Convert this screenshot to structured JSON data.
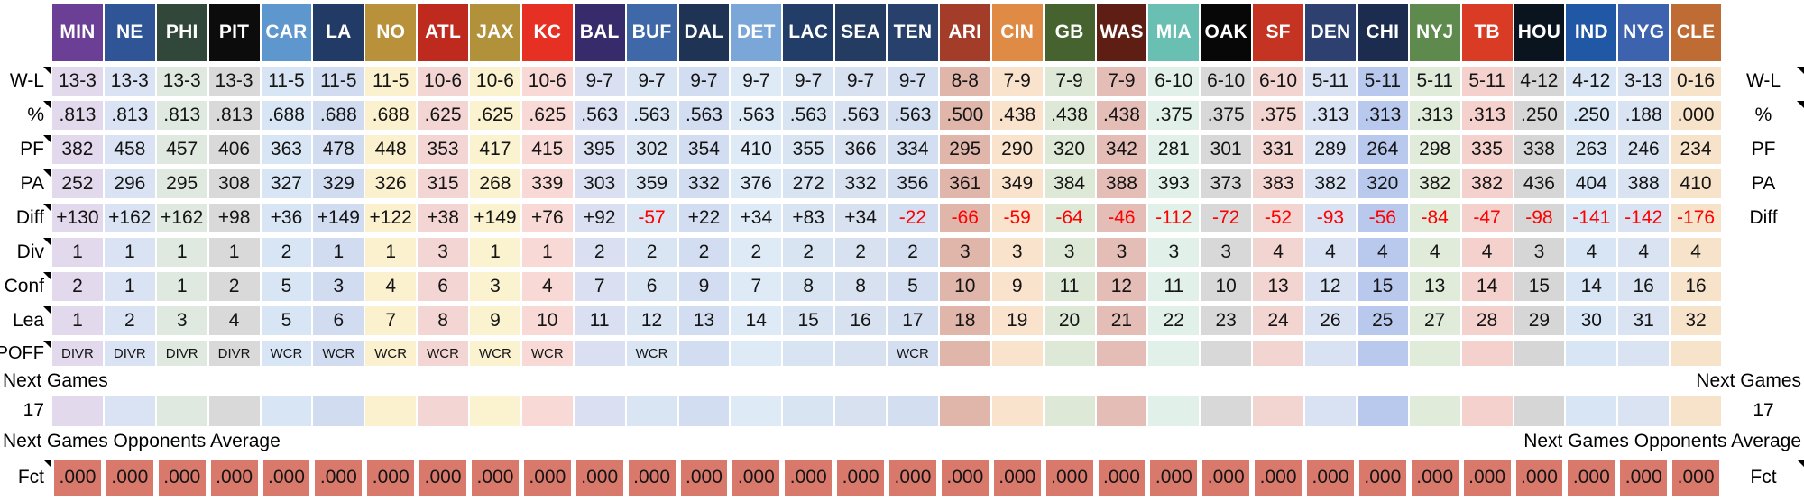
{
  "teams": [
    {
      "abbr": "MIN",
      "color": "#6C3F97",
      "tint": "#E2D9EC"
    },
    {
      "abbr": "NE",
      "color": "#2F5597",
      "tint": "#DAE3F3"
    },
    {
      "abbr": "PHI",
      "color": "#31473A",
      "tint": "#DFE9DF"
    },
    {
      "abbr": "PIT",
      "color": "#0C0C0C",
      "tint": "#D9D9D9"
    },
    {
      "abbr": "CAR",
      "color": "#5E97CE",
      "tint": "#D8E5F4"
    },
    {
      "abbr": "LA",
      "color": "#223A66",
      "tint": "#D2DCF1"
    },
    {
      "abbr": "NO",
      "color": "#BA913B",
      "tint": "#FBF1CE"
    },
    {
      "abbr": "ATL",
      "color": "#BF2A1E",
      "tint": "#F3D6D3"
    },
    {
      "abbr": "JAX",
      "color": "#B2913B",
      "tint": "#FBF2D0"
    },
    {
      "abbr": "KC",
      "color": "#E63023",
      "tint": "#F8D9D6"
    },
    {
      "abbr": "BAL",
      "color": "#372B6B",
      "tint": "#DADFF1"
    },
    {
      "abbr": "BUF",
      "color": "#3E68A8",
      "tint": "#DAE5F4"
    },
    {
      "abbr": "DAL",
      "color": "#1F3455",
      "tint": "#D3DDF1"
    },
    {
      "abbr": "DET",
      "color": "#7AA7D7",
      "tint": "#DEEAF6"
    },
    {
      "abbr": "LAC",
      "color": "#223E68",
      "tint": "#D9E4F3"
    },
    {
      "abbr": "SEA",
      "color": "#253C62",
      "tint": "#D8E1F0"
    },
    {
      "abbr": "TEN",
      "color": "#28406C",
      "tint": "#D4DEF1"
    },
    {
      "abbr": "ARI",
      "color": "#A33C28",
      "tint": "#E0B6AB"
    },
    {
      "abbr": "CIN",
      "color": "#E08B45",
      "tint": "#F9E3CC"
    },
    {
      "abbr": "GB",
      "color": "#45622F",
      "tint": "#DEE8D7"
    },
    {
      "abbr": "WAS",
      "color": "#5E1E13",
      "tint": "#E4BDB6"
    },
    {
      "abbr": "MIA",
      "color": "#69BFB1",
      "tint": "#E1F0E8"
    },
    {
      "abbr": "OAK",
      "color": "#070707",
      "tint": "#D8D8D8"
    },
    {
      "abbr": "SF",
      "color": "#C53423",
      "tint": "#F2D4D0"
    },
    {
      "abbr": "DEN",
      "color": "#2D406F",
      "tint": "#D8E2F2"
    },
    {
      "abbr": "CHI",
      "color": "#1B2C4F",
      "tint": "#B8C9ED"
    },
    {
      "abbr": "NYJ",
      "color": "#5E8A4D",
      "tint": "#E0EBDA"
    },
    {
      "abbr": "TB",
      "color": "#DA3B25",
      "tint": "#F4D1CD"
    },
    {
      "abbr": "HOU",
      "color": "#0A141F",
      "tint": "#D6D6D6"
    },
    {
      "abbr": "IND",
      "color": "#2058A5",
      "tint": "#D7E5F4"
    },
    {
      "abbr": "NYG",
      "color": "#3E63AE",
      "tint": "#DAE3F2"
    },
    {
      "abbr": "CLE",
      "color": "#BE6C34",
      "tint": "#F7E2CA"
    }
  ],
  "colors": {
    "negative_text": "#FF0000",
    "fct_cell": "#D9796C",
    "marker": "#000000"
  },
  "rows": [
    {
      "id": "wl",
      "type": "data",
      "label": "W-L",
      "right_label": "W-L",
      "marker_left": true,
      "marker_right": true,
      "values": [
        "13-3",
        "13-3",
        "13-3",
        "13-3",
        "11-5",
        "11-5",
        "11-5",
        "10-6",
        "10-6",
        "10-6",
        "9-7",
        "9-7",
        "9-7",
        "9-7",
        "9-7",
        "9-7",
        "9-7",
        "8-8",
        "7-9",
        "7-9",
        "7-9",
        "6-10",
        "6-10",
        "6-10",
        "5-11",
        "5-11",
        "5-11",
        "5-11",
        "4-12",
        "4-12",
        "3-13",
        "0-16"
      ]
    },
    {
      "id": "pct",
      "type": "data",
      "label": "%",
      "right_label": "%",
      "marker_left": true,
      "marker_right": true,
      "values": [
        ".813",
        ".813",
        ".813",
        ".813",
        ".688",
        ".688",
        ".688",
        ".625",
        ".625",
        ".625",
        ".563",
        ".563",
        ".563",
        ".563",
        ".563",
        ".563",
        ".563",
        ".500",
        ".438",
        ".438",
        ".438",
        ".375",
        ".375",
        ".375",
        ".313",
        ".313",
        ".313",
        ".313",
        ".250",
        ".250",
        ".188",
        ".000"
      ]
    },
    {
      "id": "pf",
      "type": "data",
      "label": "PF",
      "right_label": "PF",
      "marker_left": true,
      "values": [
        "382",
        "458",
        "457",
        "406",
        "363",
        "478",
        "448",
        "353",
        "417",
        "415",
        "395",
        "302",
        "354",
        "410",
        "355",
        "366",
        "334",
        "295",
        "290",
        "320",
        "342",
        "281",
        "301",
        "331",
        "289",
        "264",
        "298",
        "335",
        "338",
        "263",
        "246",
        "234"
      ]
    },
    {
      "id": "pa",
      "type": "data",
      "label": "PA",
      "right_label": "PA",
      "marker_left": true,
      "values": [
        "252",
        "296",
        "295",
        "308",
        "327",
        "329",
        "326",
        "315",
        "268",
        "339",
        "303",
        "359",
        "332",
        "376",
        "272",
        "332",
        "356",
        "361",
        "349",
        "384",
        "388",
        "393",
        "373",
        "383",
        "382",
        "320",
        "382",
        "382",
        "436",
        "404",
        "388",
        "410"
      ]
    },
    {
      "id": "diff",
      "type": "data",
      "label": "Diff",
      "right_label": "Diff",
      "marker_left": true,
      "negative_red": true,
      "values": [
        "+130",
        "+162",
        "+162",
        "+98",
        "+36",
        "+149",
        "+122",
        "+38",
        "+149",
        "+76",
        "+92",
        "-57",
        "+22",
        "+34",
        "+83",
        "+34",
        "-22",
        "-66",
        "-59",
        "-64",
        "-46",
        "-112",
        "-72",
        "-52",
        "-93",
        "-56",
        "-84",
        "-47",
        "-98",
        "-141",
        "-142",
        "-176"
      ]
    },
    {
      "id": "div",
      "type": "data",
      "label": "Div",
      "marker_left": true,
      "values": [
        "1",
        "1",
        "1",
        "1",
        "2",
        "1",
        "1",
        "3",
        "1",
        "1",
        "2",
        "2",
        "2",
        "2",
        "2",
        "2",
        "2",
        "3",
        "3",
        "3",
        "3",
        "3",
        "3",
        "4",
        "4",
        "4",
        "4",
        "4",
        "3",
        "4",
        "4",
        "4"
      ]
    },
    {
      "id": "conf",
      "type": "data",
      "label": "Conf",
      "marker_left": true,
      "values": [
        "2",
        "1",
        "1",
        "2",
        "5",
        "3",
        "4",
        "6",
        "3",
        "4",
        "7",
        "6",
        "9",
        "7",
        "8",
        "8",
        "5",
        "10",
        "9",
        "11",
        "12",
        "11",
        "10",
        "13",
        "12",
        "15",
        "13",
        "14",
        "15",
        "14",
        "16",
        "16"
      ]
    },
    {
      "id": "lea",
      "type": "data",
      "label": "Lea",
      "marker_left": true,
      "values": [
        "1",
        "2",
        "3",
        "4",
        "5",
        "6",
        "7",
        "8",
        "9",
        "10",
        "11",
        "12",
        "13",
        "14",
        "15",
        "16",
        "17",
        "18",
        "19",
        "20",
        "21",
        "22",
        "23",
        "24",
        "26",
        "25",
        "27",
        "28",
        "29",
        "30",
        "31",
        "32"
      ]
    },
    {
      "id": "poff",
      "type": "data",
      "label": "POFF",
      "marker_left": true,
      "values": [
        "DIVR",
        "DIVR",
        "DIVR",
        "DIVR",
        "WCR",
        "WCR",
        "WCR",
        "WCR",
        "WCR",
        "WCR",
        "",
        "WCR",
        "",
        "",
        "",
        "",
        "WCR",
        "",
        "",
        "",
        "",
        "",
        "",
        "",
        "",
        "",
        "",
        "",
        "",
        "",
        "",
        ""
      ]
    },
    {
      "id": "next-games",
      "type": "band",
      "label": "Next Games",
      "right_label": "Next Games"
    },
    {
      "id": "week17",
      "type": "tinted",
      "label": "17",
      "right_label": "17",
      "values": [
        "",
        "",
        "",
        "",
        "",
        "",
        "",
        "",
        "",
        "",
        "",
        "",
        "",
        "",
        "",
        "",
        "",
        "",
        "",
        "",
        "",
        "",
        "",
        "",
        "",
        "",
        "",
        "",
        "",
        "",
        "",
        ""
      ]
    },
    {
      "id": "ngoa",
      "type": "band",
      "label": "Next Games Opponents Average",
      "right_label": "Next Games Opponents Average"
    },
    {
      "id": "fct",
      "type": "fct",
      "label": "Fct",
      "right_label": "Fct",
      "marker_left": true,
      "marker_right": true,
      "values": [
        ".000",
        ".000",
        ".000",
        ".000",
        ".000",
        ".000",
        ".000",
        ".000",
        ".000",
        ".000",
        ".000",
        ".000",
        ".000",
        ".000",
        ".000",
        ".000",
        ".000",
        ".000",
        ".000",
        ".000",
        ".000",
        ".000",
        ".000",
        ".000",
        ".000",
        ".000",
        ".000",
        ".000",
        ".000",
        ".000",
        ".000",
        ".000"
      ]
    }
  ]
}
